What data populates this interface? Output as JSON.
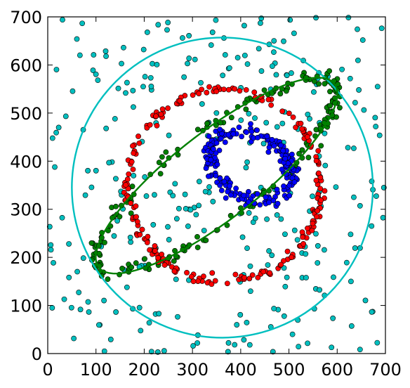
{
  "chart_data": {
    "type": "scatter",
    "title": "",
    "xlabel": "",
    "ylabel": "",
    "xlim": [
      0,
      700
    ],
    "ylim": [
      0,
      700
    ],
    "xticks": [
      0,
      100,
      200,
      300,
      400,
      500,
      600,
      700
    ],
    "yticks": [
      0,
      100,
      200,
      300,
      400,
      500,
      600,
      700
    ],
    "xtick_labels": [
      "0",
      "100",
      "200",
      "300",
      "400",
      "500",
      "600",
      "700"
    ],
    "ytick_labels": [
      "0",
      "100",
      "200",
      "300",
      "400",
      "500",
      "600",
      "700"
    ],
    "grid": false,
    "legend": "none",
    "series": [
      {
        "kind": "fitted-circle",
        "color": "#00bfbf",
        "center": [
          362,
          345
        ],
        "radius": 312
      },
      {
        "kind": "fitted-ellipse",
        "color": "#008000",
        "center": [
          350,
          370
        ],
        "semi_axes": [
          310,
          90
        ],
        "angle_deg": 38
      },
      {
        "kind": "ring-points",
        "color": "#ff0000",
        "marker": "circle",
        "center": [
          365,
          350
        ],
        "radius": 200,
        "point_count": 220,
        "spread": 5
      },
      {
        "kind": "ring-points",
        "color": "#0000ff",
        "marker": "circle",
        "center": [
          420,
          390
        ],
        "radii": [
          65,
          90
        ],
        "angle_deg": 60,
        "point_count": 200,
        "spread": 8
      },
      {
        "kind": "ellipse-points",
        "color": "#008000",
        "marker": "circle",
        "center": [
          350,
          370
        ],
        "semi_axes": [
          310,
          90
        ],
        "angle_deg": 38,
        "point_count": 200,
        "spread": 7
      },
      {
        "kind": "uniform-noise",
        "color": "#00bfbf",
        "marker": "circle",
        "range": [
          [
            0,
            700
          ],
          [
            0,
            700
          ]
        ],
        "point_count": 300
      }
    ]
  }
}
